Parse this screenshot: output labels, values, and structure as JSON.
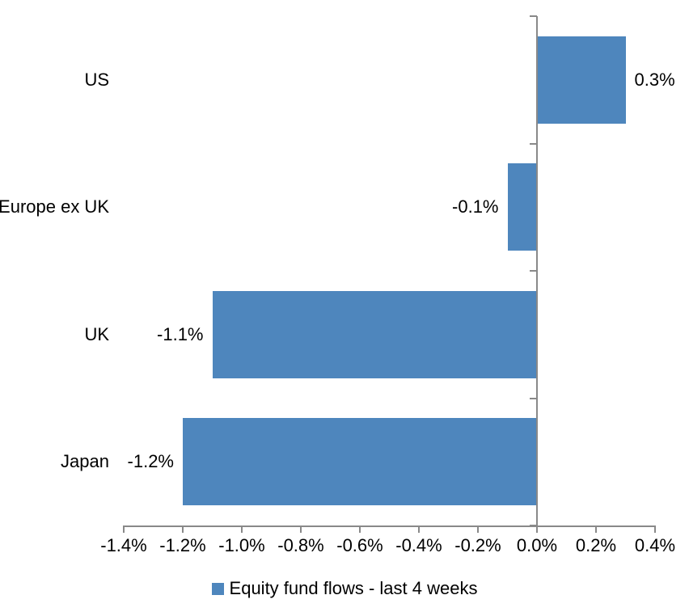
{
  "chart_data": {
    "type": "bar",
    "orientation": "horizontal",
    "title": "",
    "xlabel": "",
    "ylabel": "",
    "categories": [
      "US",
      "Europe ex UK",
      "UK",
      "Japan"
    ],
    "values": [
      0.3,
      -0.1,
      -1.1,
      -1.2
    ],
    "data_labels": [
      "0.3%",
      "-0.1%",
      "-1.1%",
      "-1.2%"
    ],
    "series": [
      {
        "name": "Equity fund flows - last 4 weeks",
        "values": [
          0.3,
          -0.1,
          -1.1,
          -1.2
        ]
      }
    ],
    "xlim": [
      -1.4,
      0.4
    ],
    "x_tick_values": [
      -1.4,
      -1.2,
      -1.0,
      -0.8,
      -0.6,
      -0.4,
      -0.2,
      0.0,
      0.2,
      0.4
    ],
    "x_tick_labels": [
      "-1.4%",
      "-1.2%",
      "-1.0%",
      "-0.8%",
      "-0.6%",
      "-0.4%",
      "-0.2%",
      "0.0%",
      "0.2%",
      "0.4%"
    ],
    "grid": false,
    "legend_position": "bottom",
    "colors": {
      "bar": "#4E86BD",
      "axis": "#898989",
      "text": "#000000",
      "background": "#FFFFFF"
    }
  },
  "legend": {
    "label": "Equity fund flows - last 4 weeks",
    "marker_color": "#4E86BD"
  }
}
